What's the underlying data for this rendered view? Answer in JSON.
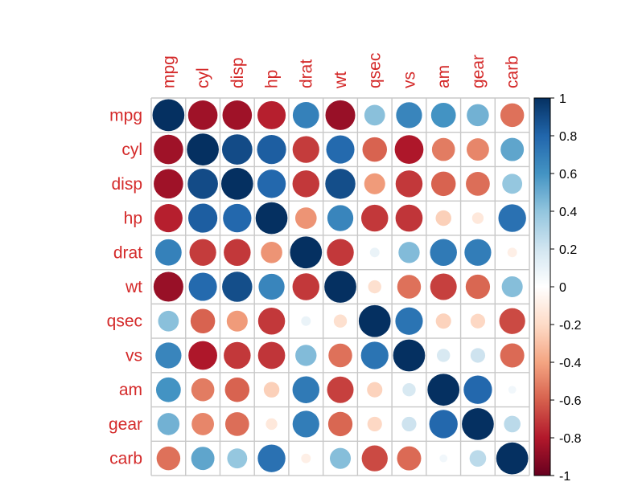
{
  "chart_data": {
    "type": "heatmap",
    "style": "circle-correlation-matrix",
    "variables": [
      "mpg",
      "cyl",
      "disp",
      "hp",
      "drat",
      "wt",
      "qsec",
      "vs",
      "am",
      "gear",
      "carb"
    ],
    "matrix": [
      [
        1.0,
        -0.85,
        -0.85,
        -0.78,
        0.68,
        -0.87,
        0.42,
        0.66,
        0.6,
        0.48,
        -0.55
      ],
      [
        -0.85,
        1.0,
        0.9,
        0.83,
        -0.7,
        0.78,
        -0.59,
        -0.81,
        -0.52,
        -0.49,
        0.53
      ],
      [
        -0.85,
        0.9,
        1.0,
        0.79,
        -0.71,
        0.89,
        -0.43,
        -0.71,
        -0.59,
        -0.56,
        0.39
      ],
      [
        -0.78,
        0.83,
        0.79,
        1.0,
        -0.45,
        0.66,
        -0.71,
        -0.72,
        -0.24,
        -0.13,
        0.75
      ],
      [
        0.68,
        -0.7,
        -0.71,
        -0.45,
        1.0,
        -0.71,
        0.09,
        0.44,
        0.71,
        0.7,
        -0.09
      ],
      [
        -0.87,
        0.78,
        0.89,
        0.66,
        -0.71,
        1.0,
        -0.17,
        -0.55,
        -0.69,
        -0.58,
        0.43
      ],
      [
        0.42,
        -0.59,
        -0.43,
        -0.71,
        0.09,
        -0.17,
        1.0,
        0.74,
        -0.23,
        -0.21,
        -0.66
      ],
      [
        0.66,
        -0.81,
        -0.71,
        -0.72,
        0.44,
        -0.55,
        0.74,
        1.0,
        0.17,
        0.21,
        -0.57
      ],
      [
        0.6,
        -0.52,
        -0.59,
        -0.24,
        0.71,
        -0.69,
        -0.23,
        0.17,
        1.0,
        0.79,
        0.06
      ],
      [
        0.48,
        -0.49,
        -0.56,
        -0.13,
        0.7,
        -0.58,
        -0.21,
        0.21,
        0.79,
        1.0,
        0.27
      ],
      [
        -0.55,
        0.53,
        0.39,
        0.75,
        -0.09,
        0.43,
        -0.66,
        -0.57,
        0.06,
        0.27,
        1.0
      ]
    ],
    "colorbar": {
      "range": [
        -1,
        1
      ],
      "ticks": [
        "1",
        "0.8",
        "0.6",
        "0.4",
        "0.2",
        "0",
        "-0.2",
        "-0.4",
        "-0.6",
        "-0.8",
        "-1"
      ],
      "tick_values": [
        1,
        0.8,
        0.6,
        0.4,
        0.2,
        0,
        -0.2,
        -0.4,
        -0.6,
        -0.8,
        -1
      ],
      "placement": "right"
    },
    "colors": {
      "label": "#d42a2a",
      "grid": "#c8c8c8",
      "scale": [
        "#67001f",
        "#b2182b",
        "#d6604d",
        "#f4a582",
        "#fddbc7",
        "#ffffff",
        "#d1e5f0",
        "#92c5de",
        "#4393c3",
        "#2166ac",
        "#053061"
      ]
    }
  }
}
